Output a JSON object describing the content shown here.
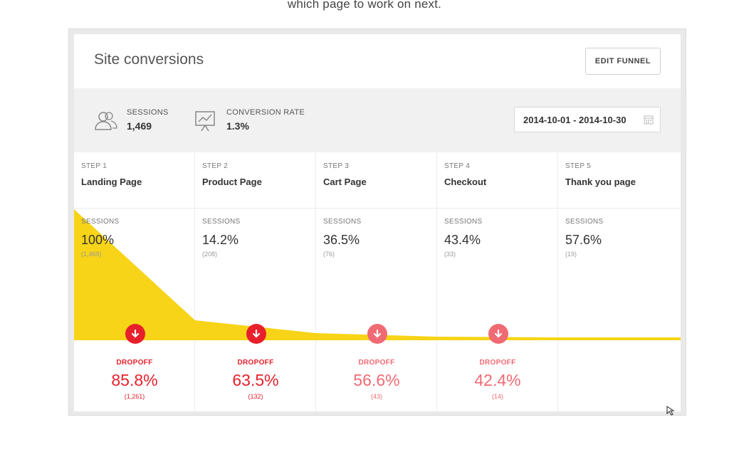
{
  "caption": "which page to work on next.",
  "title": "Site conversions",
  "edit_button": "EDIT FUNNEL",
  "stats": {
    "sessions_label": "SESSIONS",
    "sessions_value": "1,469",
    "conversion_label": "CONVERSION RATE",
    "conversion_value": "1.3%"
  },
  "date_range": "2014-10-01 - 2014-10-30",
  "sessions_label": "SESSIONS",
  "dropoff_label": "DROPOFF",
  "colors": {
    "funnel_fill": "#f7d417",
    "dropoff_strong": "#e8202b",
    "dropoff_light": "#f06a73"
  },
  "steps": [
    {
      "step": "STEP 1",
      "name": "Landing Page",
      "sessions_pct": "100%",
      "sessions_count": "(1,469)",
      "dropoff_pct": "85.8%",
      "dropoff_count": "(1,261)",
      "dropoff_color": "#e8202b"
    },
    {
      "step": "STEP 2",
      "name": "Product Page",
      "sessions_pct": "14.2%",
      "sessions_count": "(208)",
      "dropoff_pct": "63.5%",
      "dropoff_count": "(132)",
      "dropoff_color": "#e8202b"
    },
    {
      "step": "STEP 3",
      "name": "Cart Page",
      "sessions_pct": "36.5%",
      "sessions_count": "(76)",
      "dropoff_pct": "56.6%",
      "dropoff_count": "(43)",
      "dropoff_color": "#f06a73"
    },
    {
      "step": "STEP 4",
      "name": "Checkout",
      "sessions_pct": "43.4%",
      "sessions_count": "(33)",
      "dropoff_pct": "42.4%",
      "dropoff_count": "(14)",
      "dropoff_color": "#f06a73"
    },
    {
      "step": "STEP 5",
      "name": "Thank you page",
      "sessions_pct": "57.6%",
      "sessions_count": "(19)"
    }
  ]
}
